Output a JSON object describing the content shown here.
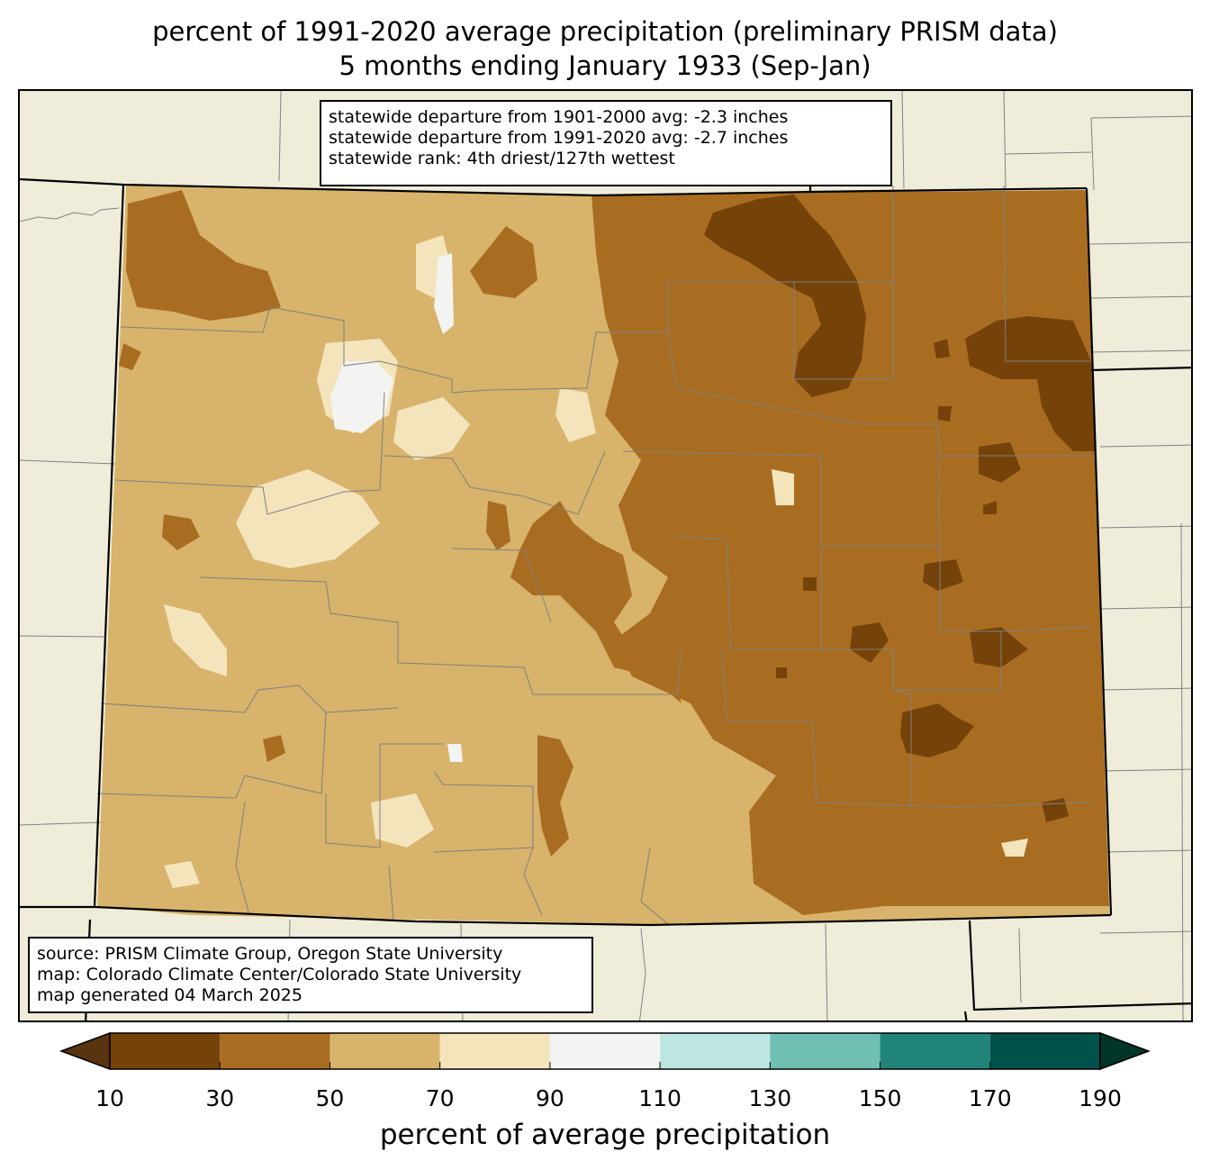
{
  "title": {
    "line1": "percent of 1991-2020 average precipitation (preliminary PRISM data)",
    "line2": "5 months ending January 1933 (Sep-Jan)"
  },
  "stats": {
    "line1": "statewide departure from 1901-2000 avg: -2.3 inches",
    "line2": "statewide departure from 1991-2020 avg: -2.7 inches",
    "line3": "statewide rank: 4th driest/127th wettest"
  },
  "source": {
    "line1": "source: PRISM Climate Group, Oregon State University",
    "line2": "map: Colorado Climate Center/Colorado State University",
    "line3": "map generated 04 March 2025"
  },
  "colorbar": {
    "label": "percent of average precipitation",
    "ticks": [
      "10",
      "30",
      "50",
      "70",
      "90",
      "110",
      "130",
      "150",
      "170",
      "190"
    ],
    "colors": [
      "#5a3410",
      "#754309",
      "#a96d21",
      "#d8b36b",
      "#f4e4bc",
      "#f3f4f2",
      "#bde6e0",
      "#6fc0b3",
      "#208479",
      "#00524a",
      "#003528"
    ],
    "extend": "both"
  },
  "map_colors": {
    "background": "#efedda",
    "class_10_30": "#754309",
    "class_30_50": "#a96d21",
    "class_50_70": "#d8b36b",
    "class_70_90": "#f4e4bc",
    "class_90_110": "#f3f4f2",
    "county_lines": "#808080",
    "state_lines": "#000000"
  }
}
